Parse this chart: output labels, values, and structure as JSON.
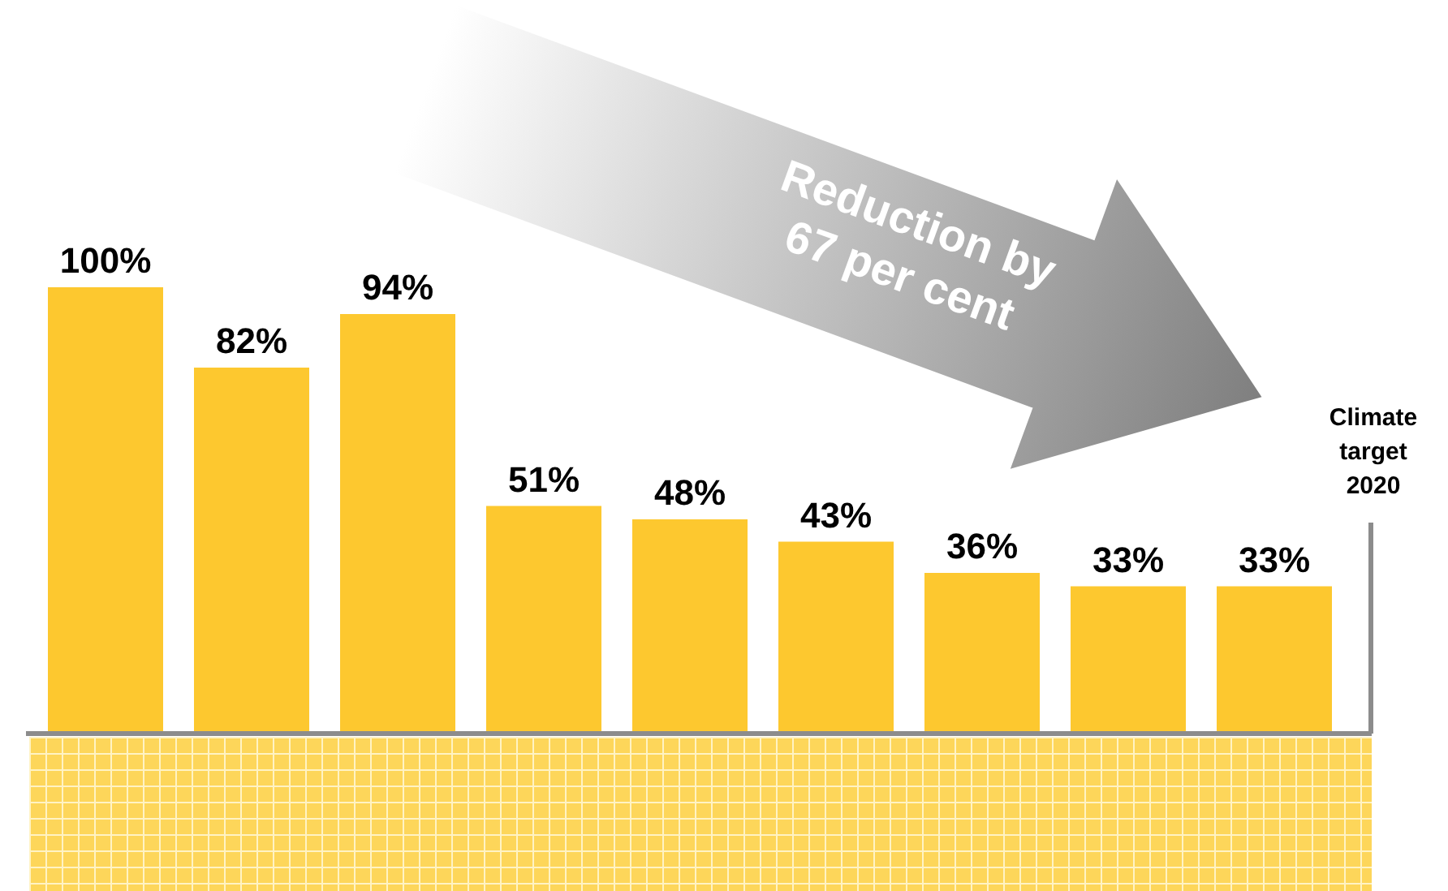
{
  "chart_data": {
    "type": "bar",
    "categories": [
      null,
      null,
      null,
      null,
      null,
      null,
      null,
      null,
      null
    ],
    "values": [
      100,
      82,
      94,
      51,
      48,
      43,
      36,
      33,
      33
    ],
    "value_labels": [
      "100%",
      "82%",
      "94%",
      "51%",
      "48%",
      "43%",
      "36%",
      "33%",
      "33%"
    ],
    "color": "#fdc82f",
    "legend": false,
    "annotations": [
      "Reduction by 67 per cent",
      "Climate target 2020"
    ]
  }
}
